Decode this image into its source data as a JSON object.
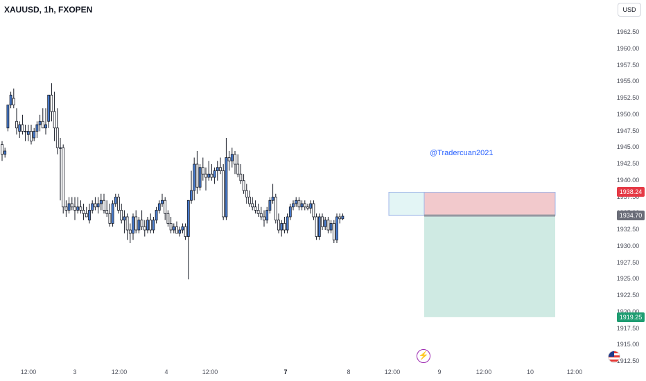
{
  "header": {
    "symbol": "XAUUSD, 1h, FXOPEN",
    "currency": "USD"
  },
  "watermark": "@Tradercuan2021",
  "price_axis": {
    "labels": [
      "1962.50",
      "1960.00",
      "1957.50",
      "1955.00",
      "1952.50",
      "1950.00",
      "1947.50",
      "1945.00",
      "1942.50",
      "1940.00",
      "1937.50",
      "1935.00",
      "1932.50",
      "1930.00",
      "1927.50",
      "1925.00",
      "1922.50",
      "1920.00",
      "1917.50",
      "1915.00",
      "1912.50"
    ],
    "target_price": "1938.24",
    "current_price": "1934.70",
    "stop_price": "1919.25"
  },
  "time_axis": {
    "labels": [
      {
        "text": "12:00",
        "bold": false
      },
      {
        "text": "3",
        "bold": false
      },
      {
        "text": "12:00",
        "bold": false
      },
      {
        "text": "4",
        "bold": false
      },
      {
        "text": "12:00",
        "bold": false
      },
      {
        "text": "7",
        "bold": true
      },
      {
        "text": "8",
        "bold": false
      },
      {
        "text": "12:00",
        "bold": false
      },
      {
        "text": "9",
        "bold": false
      },
      {
        "text": "12:00",
        "bold": false
      },
      {
        "text": "10",
        "bold": false
      },
      {
        "text": "12:00",
        "bold": false
      }
    ]
  },
  "icons": {
    "lightning": "lightning-icon",
    "flag": "us-flag-icon"
  },
  "colors": {
    "bull_fill": "#4a7fd4",
    "bear_fill": "#ffffff",
    "candle_border": "#131722",
    "target_zone": "#f2c9cc",
    "stop_zone": "#cfeae3",
    "entry_zone": "#e3f5f5",
    "target_tag": "#e53945",
    "current_tag": "#6a6d78",
    "stop_tag": "#1f9d72",
    "watermark": "#2962ff"
  },
  "chart_data": {
    "type": "candlestick",
    "symbol": "XAUUSD",
    "interval": "1h",
    "y_range": [
      1912.5,
      1962.5
    ],
    "position": {
      "side": "short",
      "entry": 1934.7,
      "target_zone_top": 1938.24,
      "stop_bottom": 1919.25
    },
    "candles": [
      [
        1945.5,
        1946,
        1943,
        1944
      ],
      [
        1944,
        1945,
        1943.5,
        1944.5
      ],
      [
        1948,
        1951,
        1947.5,
        1951.5
      ],
      [
        1951.5,
        1953.5,
        1951,
        1953
      ],
      [
        1952.5,
        1954,
        1951,
        1951.5
      ],
      [
        1949,
        1951,
        1947,
        1948
      ],
      [
        1947.5,
        1949,
        1946.5,
        1948.5
      ],
      [
        1948.5,
        1950,
        1947,
        1947.5
      ],
      [
        1947.5,
        1948.5,
        1946,
        1947.5
      ],
      [
        1947,
        1948.5,
        1946,
        1947.5
      ],
      [
        1947.5,
        1948.5,
        1945.5,
        1946
      ],
      [
        1946.5,
        1948,
        1946,
        1947.5
      ],
      [
        1947.5,
        1949,
        1946.5,
        1948.5
      ],
      [
        1948.5,
        1950,
        1947.5,
        1949
      ],
      [
        1949,
        1951,
        1948,
        1948
      ],
      [
        1948,
        1951,
        1947,
        1948.5
      ],
      [
        1949,
        1953,
        1948,
        1953
      ],
      [
        1953,
        1954.8,
        1949,
        1950.5
      ],
      [
        1950.5,
        1953.5,
        1946,
        1948
      ],
      [
        1948,
        1951,
        1944,
        1945
      ],
      [
        1945,
        1946.5,
        1937,
        1945
      ],
      [
        1945,
        1945.5,
        1935,
        1936
      ],
      [
        1936,
        1937,
        1934.5,
        1935.5
      ],
      [
        1935.5,
        1937.5,
        1935,
        1936.5
      ],
      [
        1936.5,
        1937.5,
        1935.5,
        1936
      ],
      [
        1936,
        1937.5,
        1934,
        1935.5
      ],
      [
        1935.5,
        1937.5,
        1935,
        1936
      ],
      [
        1936,
        1937,
        1935,
        1935.5
      ],
      [
        1935.5,
        1936.5,
        1934,
        1935
      ],
      [
        1935,
        1936,
        1934.5,
        1934.5
      ],
      [
        1934,
        1936.5,
        1933.5,
        1935.5
      ],
      [
        1935.5,
        1937,
        1935,
        1936.5
      ],
      [
        1936.5,
        1937.5,
        1935.5,
        1936
      ],
      [
        1936,
        1937.5,
        1935,
        1936.5
      ],
      [
        1936.5,
        1938,
        1935.5,
        1937
      ],
      [
        1937,
        1938,
        1935,
        1935.5
      ],
      [
        1935.5,
        1937,
        1934.5,
        1935
      ],
      [
        1935,
        1936.5,
        1933,
        1933.5
      ],
      [
        1933.5,
        1937,
        1933,
        1936.5
      ],
      [
        1936.5,
        1938,
        1936,
        1937.5
      ],
      [
        1937.5,
        1938,
        1935,
        1935.5
      ],
      [
        1935.5,
        1936.5,
        1933.5,
        1934
      ],
      [
        1934,
        1935.5,
        1932,
        1934.5
      ],
      [
        1934.5,
        1935,
        1931,
        1932.5
      ],
      [
        1932.5,
        1933.5,
        1930.5,
        1932
      ],
      [
        1932,
        1935,
        1931,
        1934.5
      ],
      [
        1934.5,
        1935.5,
        1932,
        1932.5
      ],
      [
        1932.5,
        1934.5,
        1932,
        1934
      ],
      [
        1934,
        1935.5,
        1932.5,
        1933
      ],
      [
        1933,
        1934,
        1931.5,
        1932.5
      ],
      [
        1932.5,
        1934.5,
        1932,
        1934
      ],
      [
        1934,
        1935,
        1932,
        1932.5
      ],
      [
        1932.5,
        1934.5,
        1932,
        1934
      ],
      [
        1934,
        1936,
        1933.5,
        1935.5
      ],
      [
        1935.5,
        1937,
        1935,
        1936.5
      ],
      [
        1936.5,
        1938,
        1936,
        1937
      ],
      [
        1937,
        1937.5,
        1934,
        1935
      ],
      [
        1935,
        1935.5,
        1933,
        1933.5
      ],
      [
        1933.5,
        1934.5,
        1932,
        1932.5
      ],
      [
        1932.5,
        1933.5,
        1932,
        1933
      ],
      [
        1933,
        1933.8,
        1932,
        1932
      ],
      [
        1932,
        1933,
        1931.5,
        1932.5
      ],
      [
        1932.5,
        1933.5,
        1932,
        1933
      ],
      [
        1933,
        1933.5,
        1931,
        1931.5
      ],
      [
        1931.5,
        1937,
        1925,
        1937
      ],
      [
        1937,
        1941.5,
        1936.5,
        1938.5
      ],
      [
        1938.5,
        1943.5,
        1937,
        1942.5
      ],
      [
        1942.5,
        1944.5,
        1938,
        1939
      ],
      [
        1939,
        1942.5,
        1938.5,
        1942
      ],
      [
        1942,
        1943.5,
        1940,
        1941
      ],
      [
        1941,
        1942,
        1938.5,
        1940.5
      ],
      [
        1940.5,
        1943,
        1940,
        1941
      ],
      [
        1941,
        1942.5,
        1940,
        1940.5
      ],
      [
        1940.5,
        1942,
        1939.5,
        1941.5
      ],
      [
        1941.5,
        1943,
        1940,
        1942
      ],
      [
        1942,
        1943.5,
        1941,
        1941.5
      ],
      [
        1941.5,
        1942.5,
        1934,
        1934.5
      ],
      [
        1934.5,
        1946.5,
        1934,
        1943.5
      ],
      [
        1943.5,
        1944.5,
        1941.5,
        1943
      ],
      [
        1943,
        1945,
        1942,
        1944
      ],
      [
        1944,
        1944.5,
        1941,
        1942.5
      ],
      [
        1942.5,
        1944,
        1940.5,
        1941
      ],
      [
        1941,
        1942.5,
        1939.5,
        1940
      ],
      [
        1940,
        1941,
        1938,
        1938.5
      ],
      [
        1938.5,
        1939.5,
        1936.5,
        1937.5
      ],
      [
        1937.5,
        1938.5,
        1936,
        1936.5
      ],
      [
        1936.5,
        1937.5,
        1935.5,
        1936
      ],
      [
        1936,
        1937,
        1935,
        1935.5
      ],
      [
        1935.5,
        1936.5,
        1934.5,
        1935
      ],
      [
        1935,
        1936,
        1934,
        1934.5
      ],
      [
        1934.5,
        1935.5,
        1933,
        1934
      ],
      [
        1934,
        1936,
        1933.5,
        1935.5
      ],
      [
        1935.5,
        1937.5,
        1935,
        1937
      ],
      [
        1937,
        1939.5,
        1936.5,
        1937.5
      ],
      [
        1937.5,
        1938,
        1933.5,
        1934
      ],
      [
        1934,
        1935,
        1932,
        1932.5
      ],
      [
        1932.5,
        1934,
        1931.5,
        1933.5
      ],
      [
        1933.5,
        1934.5,
        1932,
        1932.5
      ],
      [
        1932.5,
        1935,
        1932,
        1934.5
      ],
      [
        1934.5,
        1936.5,
        1934,
        1936
      ],
      [
        1936,
        1937,
        1935.5,
        1936.5
      ],
      [
        1936.5,
        1937.5,
        1936,
        1937
      ],
      [
        1937,
        1937.5,
        1935.5,
        1936
      ],
      [
        1936,
        1937,
        1935.5,
        1936.5
      ],
      [
        1936.5,
        1937,
        1935.5,
        1936
      ],
      [
        1936,
        1936.5,
        1935.5,
        1935.8
      ],
      [
        1935.8,
        1937,
        1935,
        1936.5
      ],
      [
        1936.5,
        1937,
        1934,
        1934.5
      ],
      [
        1934.5,
        1935,
        1931,
        1931.5
      ],
      [
        1931.5,
        1935,
        1931,
        1934.5
      ],
      [
        1934.5,
        1935,
        1932.5,
        1933
      ],
      [
        1933,
        1934.5,
        1932.5,
        1934
      ],
      [
        1934,
        1934.5,
        1932,
        1932.5
      ],
      [
        1932.5,
        1934,
        1932,
        1933.5
      ],
      [
        1933.5,
        1934,
        1930.5,
        1931
      ],
      [
        1931,
        1935,
        1930.5,
        1934.5
      ],
      [
        1934.5,
        1935,
        1933.5,
        1934.2
      ],
      [
        1934.2,
        1935,
        1934,
        1934.6
      ]
    ]
  }
}
